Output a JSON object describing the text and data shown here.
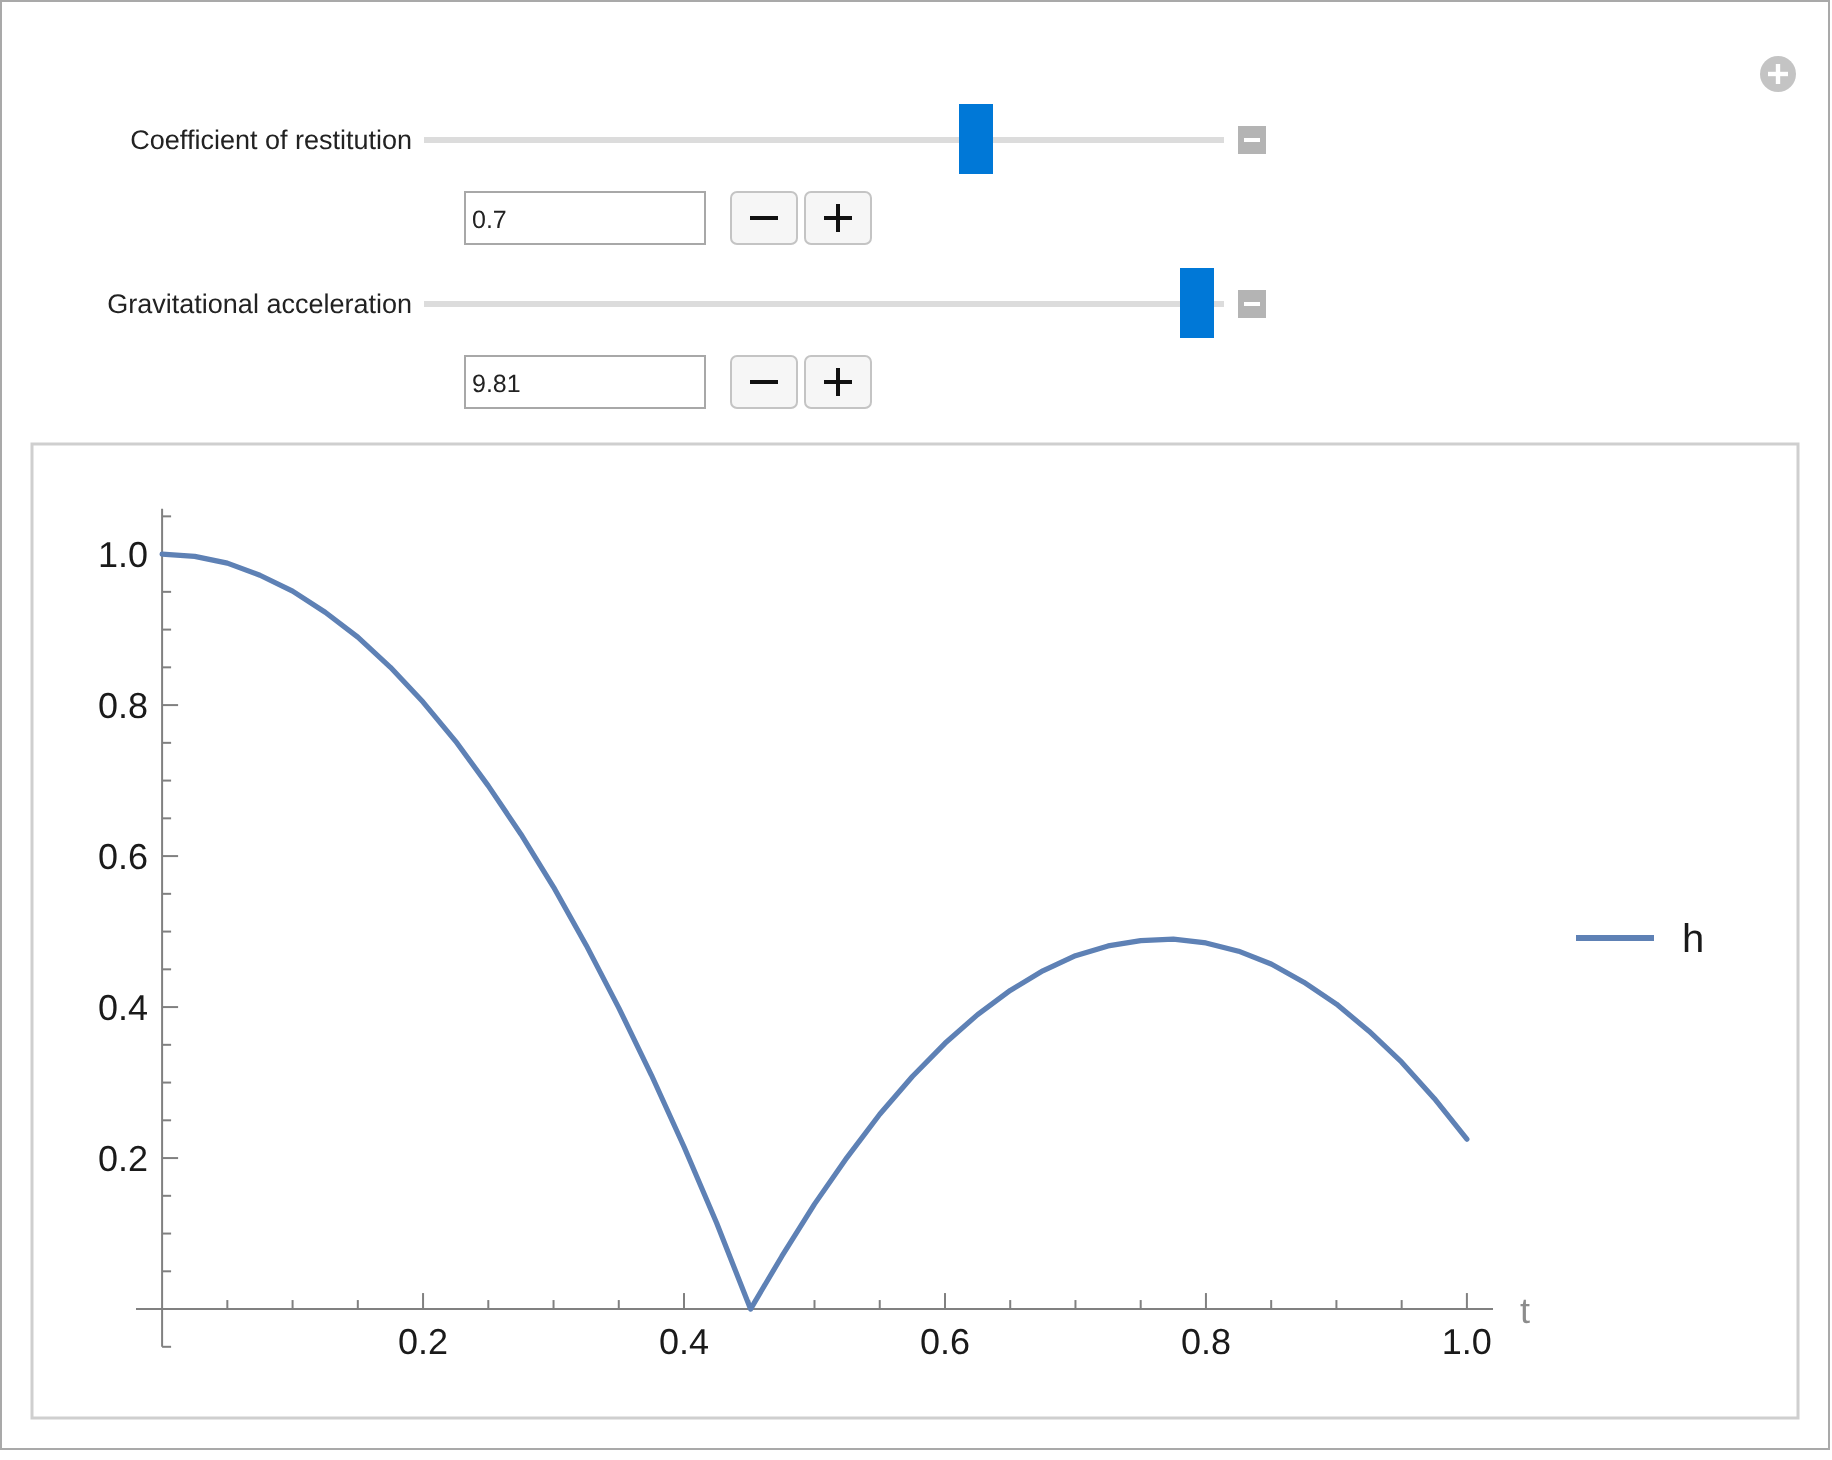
{
  "chart_data": {
    "type": "line",
    "xlabel": "t",
    "legend": "right",
    "annotations": [
      "Coefficient of restitution",
      "0.7",
      "Gravitational acceleration",
      "9.81"
    ],
    "x": [
      0,
      0.025,
      0.05,
      0.075,
      0.1,
      0.125,
      0.15,
      0.175,
      0.2,
      0.225,
      0.25,
      0.275,
      0.3,
      0.325,
      0.35,
      0.375,
      0.4,
      0.425,
      0.451,
      0.475,
      0.5,
      0.525,
      0.55,
      0.575,
      0.6,
      0.625,
      0.65,
      0.675,
      0.7,
      0.725,
      0.75,
      0.775,
      0.8,
      0.825,
      0.85,
      0.875,
      0.9,
      0.925,
      0.95,
      0.975,
      1.0
    ],
    "series": [
      {
        "name": "h",
        "color": "#5e81b5",
        "values": [
          1.0,
          0.997,
          0.988,
          0.972,
          0.951,
          0.923,
          0.89,
          0.85,
          0.804,
          0.752,
          0.693,
          0.629,
          0.559,
          0.482,
          0.399,
          0.31,
          0.215,
          0.114,
          0,
          0.07,
          0.139,
          0.201,
          0.258,
          0.308,
          0.352,
          0.39,
          0.422,
          0.448,
          0.468,
          0.481,
          0.488,
          0.49,
          0.485,
          0.474,
          0.457,
          0.433,
          0.404,
          0.368,
          0.327,
          0.279,
          0.225
        ]
      }
    ],
    "xlim": [
      -0.02,
      1.02
    ],
    "ylim": [
      -0.05,
      1.06
    ],
    "xticks": [
      {
        "value": 0.05,
        "label": null
      },
      {
        "value": 0.1,
        "label": null
      },
      {
        "value": 0.15,
        "label": null
      },
      0.2,
      {
        "value": 0.25,
        "label": null
      },
      {
        "value": 0.3,
        "label": null
      },
      {
        "value": 0.35,
        "label": null
      },
      0.4,
      {
        "value": 0.45,
        "label": null
      },
      {
        "value": 0.5,
        "label": null
      },
      {
        "value": 0.55,
        "label": null
      },
      0.6,
      {
        "value": 0.65,
        "label": null
      },
      {
        "value": 0.7,
        "label": null
      },
      {
        "value": 0.75,
        "label": null
      },
      0.8,
      {
        "value": 0.85,
        "label": null
      },
      {
        "value": 0.9,
        "label": null
      },
      {
        "value": 0.95,
        "label": null
      },
      {
        "value": 1,
        "label": "1.0"
      }
    ],
    "yticks": [
      {
        "value": -0.05,
        "label": null
      },
      {
        "value": 0.05,
        "label": null
      },
      {
        "value": 0.1,
        "label": null
      },
      {
        "value": 0.15,
        "label": null
      },
      0.2,
      {
        "value": 0.25,
        "label": null
      },
      {
        "value": 0.3,
        "label": null
      },
      {
        "value": 0.35,
        "label": null
      },
      0.4,
      {
        "value": 0.45,
        "label": null
      },
      {
        "value": 0.5,
        "label": null
      },
      {
        "value": 0.55,
        "label": null
      },
      0.6,
      {
        "value": 0.65,
        "label": null
      },
      {
        "value": 0.7,
        "label": null
      },
      {
        "value": 0.75,
        "label": null
      },
      0.8,
      {
        "value": 0.85,
        "label": null
      },
      {
        "value": 0.9,
        "label": null
      },
      {
        "value": 0.95,
        "label": null
      },
      {
        "value": 1,
        "label": "1.0"
      },
      {
        "value": 1.05,
        "label": null
      }
    ]
  }
}
